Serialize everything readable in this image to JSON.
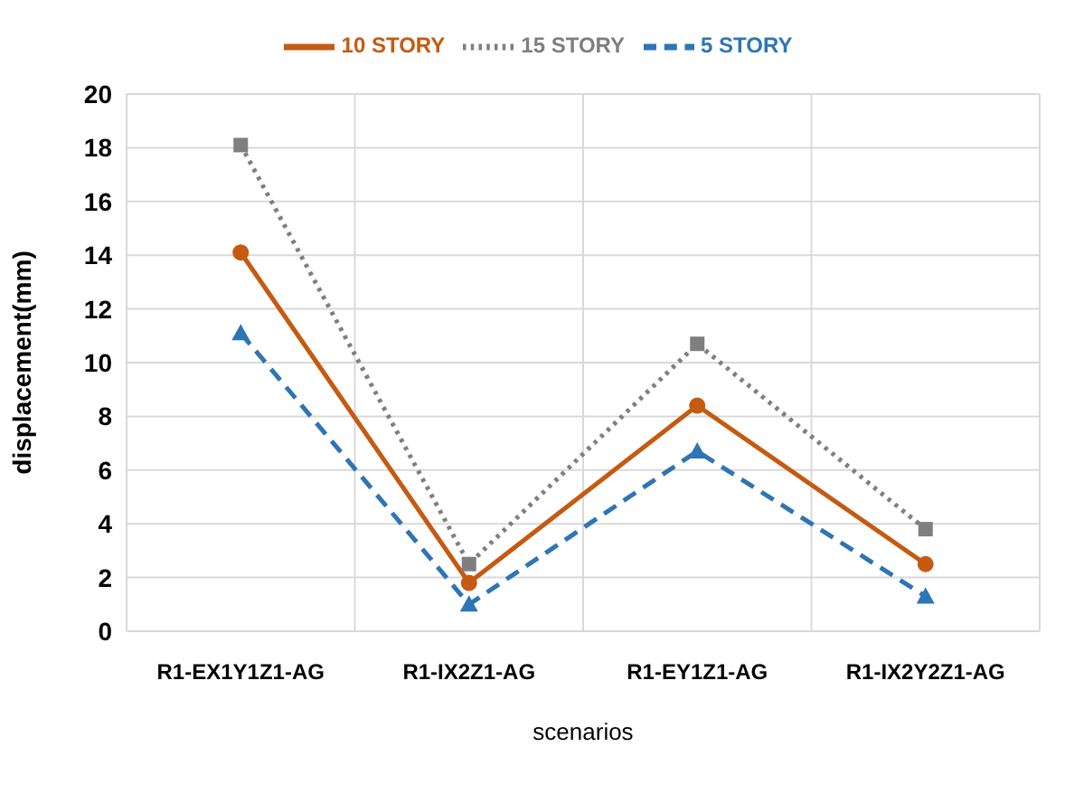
{
  "chart_data": {
    "type": "line",
    "xlabel": "scenarios",
    "ylabel": "displacement(mm)",
    "categories": [
      "R1-EX1Y1Z1-AG",
      "R1-IX2Z1-AG",
      "R1-EY1Z1-AG",
      "R1-IX2Y2Z1-AG"
    ],
    "series": [
      {
        "name": "5 STORY",
        "color": "#2e75b6",
        "values": [
          11.1,
          1.0,
          6.7,
          1.3
        ],
        "marker": "triangle",
        "line_style": "dashed"
      },
      {
        "name": "10 STORY",
        "color": "#c55a11",
        "values": [
          14.1,
          1.8,
          8.4,
          2.5
        ],
        "marker": "circle",
        "line_style": "solid"
      },
      {
        "name": "15 STORY",
        "color": "#7f7f7f",
        "values": [
          18.1,
          2.5,
          10.7,
          3.8
        ],
        "marker": "square",
        "line_style": "dotted"
      }
    ],
    "ylim": [
      0,
      20
    ],
    "yticks": [
      0,
      2,
      4,
      6,
      8,
      10,
      12,
      14,
      16,
      18,
      20
    ],
    "grid": true,
    "legend": "top"
  }
}
